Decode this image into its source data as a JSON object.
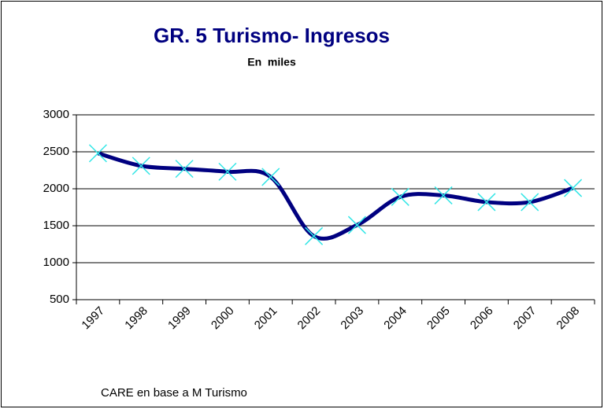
{
  "chart_data": {
    "type": "line",
    "title": "GR. 5 Turismo- Ingresos",
    "subtitle": "En  miles",
    "categories": [
      "1997",
      "1998",
      "1999",
      "2000",
      "2001",
      "2002",
      "2003",
      "2004",
      "2005",
      "2006",
      "2007",
      "2008"
    ],
    "values": [
      2480,
      2310,
      2270,
      2230,
      2160,
      1360,
      1510,
      1890,
      1910,
      1820,
      1820,
      2010
    ],
    "color": "#000080",
    "marker_color": "#33e6e6",
    "ylim": [
      500,
      3000
    ],
    "yticks": [
      500,
      1000,
      1500,
      2000,
      2500,
      3000
    ],
    "grid": true,
    "source": "CARE en base a M Turismo"
  }
}
